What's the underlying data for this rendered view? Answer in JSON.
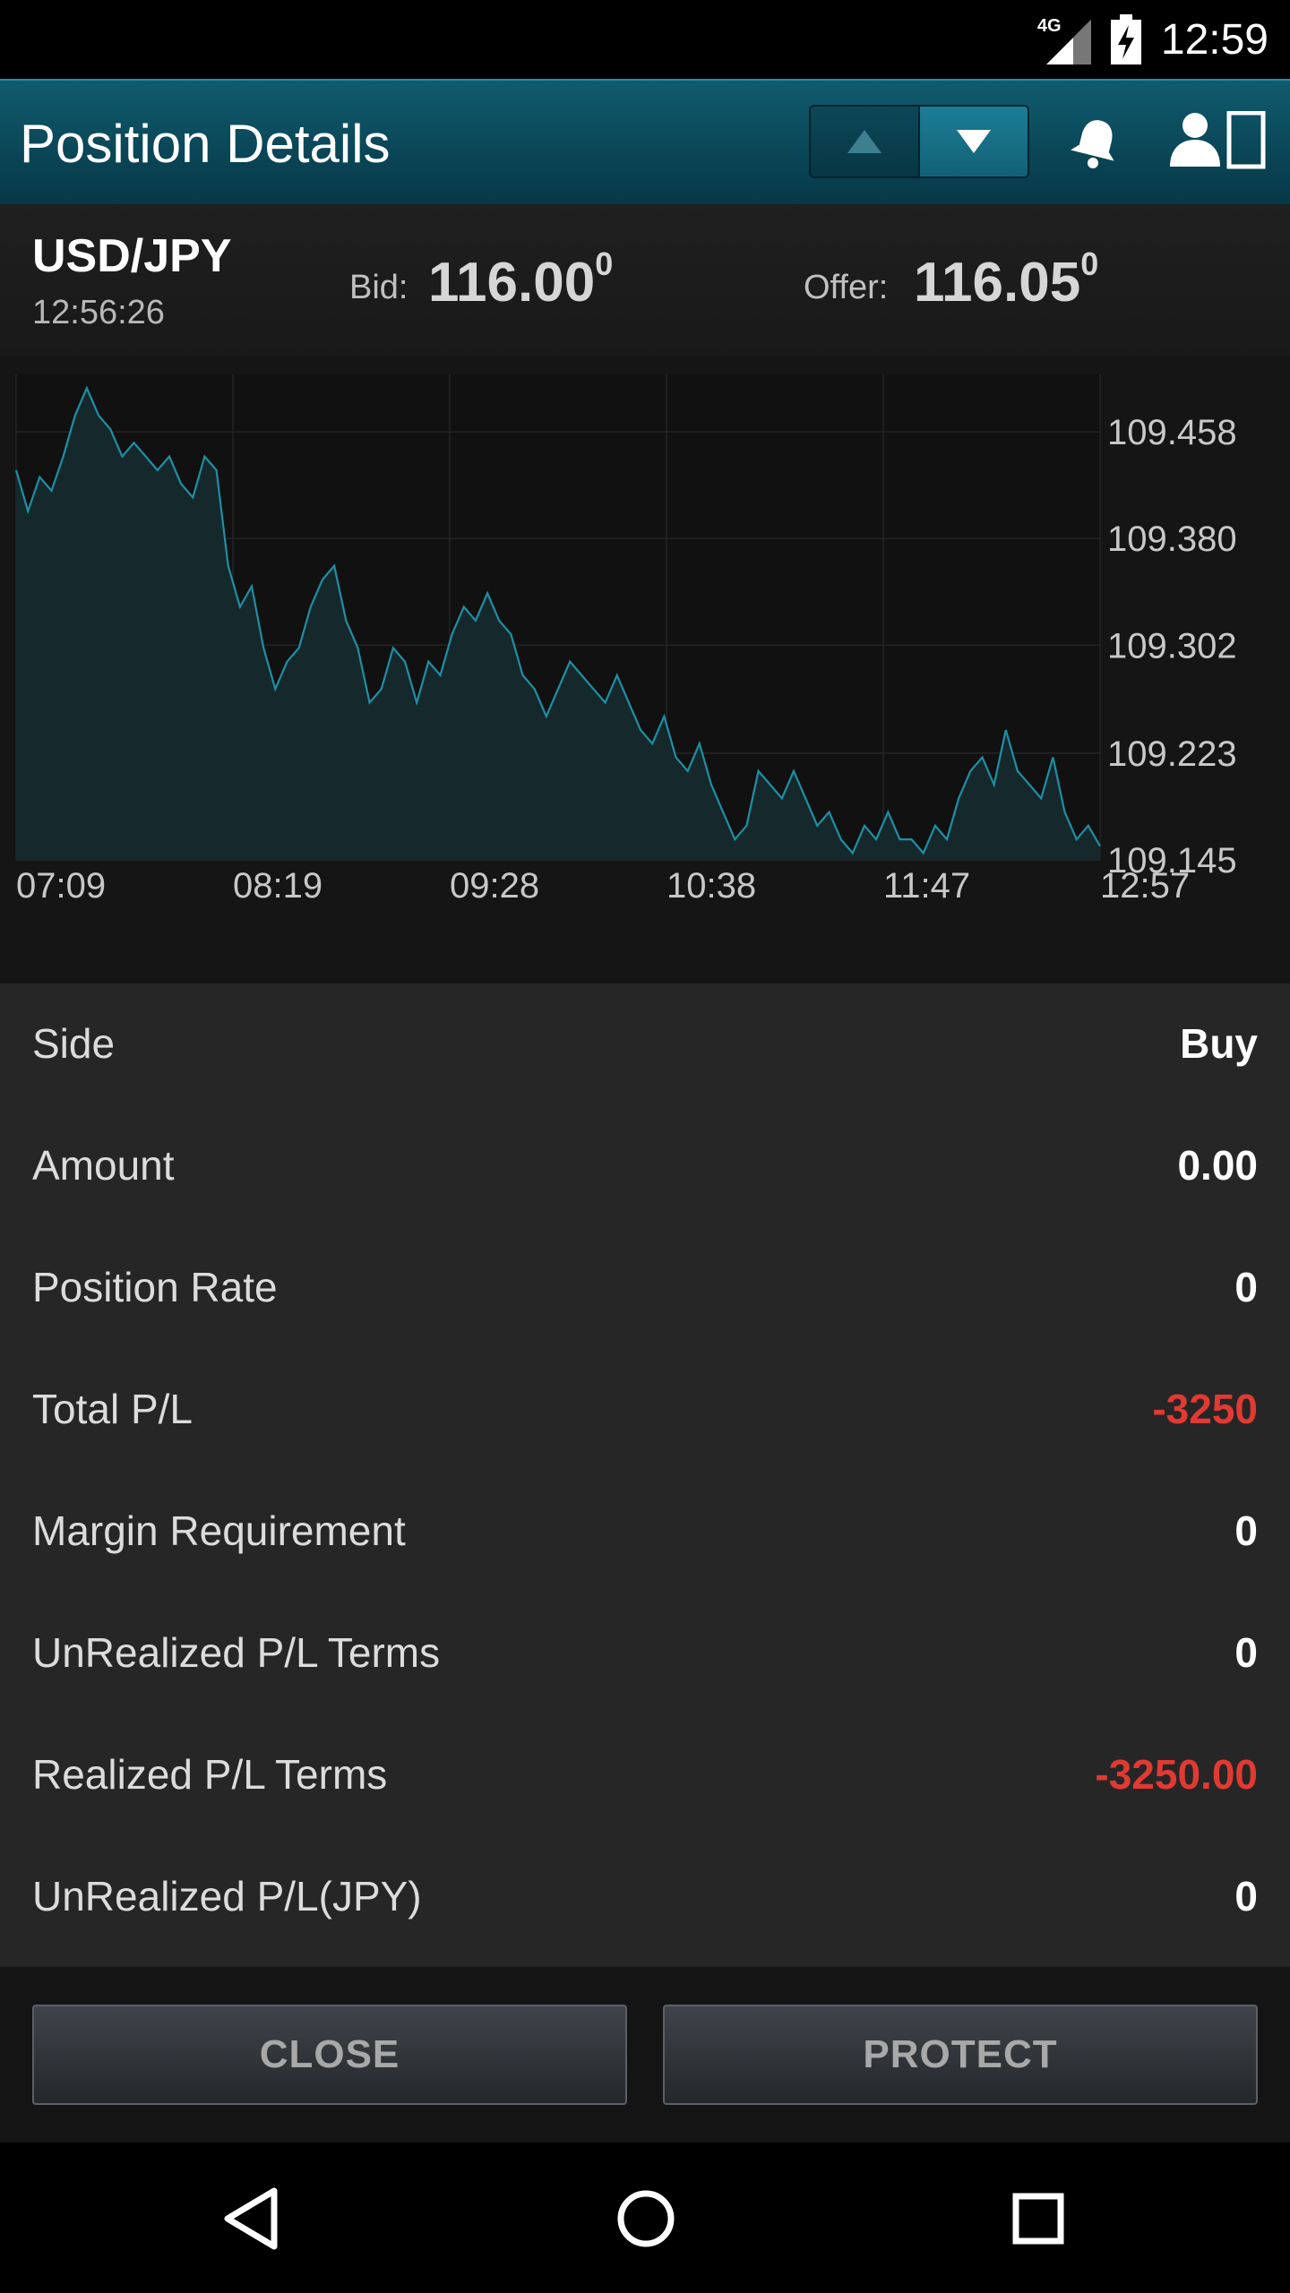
{
  "status_bar": {
    "network": "4G",
    "time": "12:59"
  },
  "app_bar": {
    "title": "Position Details"
  },
  "quote": {
    "pair": "USD/JPY",
    "time": "12:56:26",
    "bid_label": "Bid:",
    "bid_main": "116.00",
    "bid_pip": "0",
    "offer_label": "Offer:",
    "offer_main": "116.05",
    "offer_pip": "0"
  },
  "chart_data": {
    "type": "area",
    "x_tick_labels": [
      "07:09",
      "08:19",
      "09:28",
      "10:38",
      "11:47",
      "12:57"
    ],
    "y_tick_labels": [
      "109.458",
      "109.380",
      "109.302",
      "109.223",
      "109.145"
    ],
    "ylim": [
      109.145,
      109.5
    ],
    "grid": true,
    "colors": {
      "line": "#1f8fa3",
      "fill": "#15292d"
    },
    "series": [
      {
        "values": [
          109.43,
          109.4,
          109.425,
          109.415,
          109.44,
          109.47,
          109.49,
          109.47,
          109.46,
          109.44,
          109.45,
          109.44,
          109.43,
          109.44,
          109.42,
          109.41,
          109.44,
          109.43,
          109.36,
          109.33,
          109.345,
          109.3,
          109.27,
          109.29,
          109.3,
          109.33,
          109.35,
          109.36,
          109.32,
          109.3,
          109.26,
          109.27,
          109.3,
          109.29,
          109.26,
          109.29,
          109.28,
          109.31,
          109.33,
          109.32,
          109.34,
          109.32,
          109.31,
          109.28,
          109.27,
          109.25,
          109.27,
          109.29,
          109.28,
          109.27,
          109.26,
          109.28,
          109.26,
          109.24,
          109.23,
          109.25,
          109.22,
          109.21,
          109.23,
          109.2,
          109.18,
          109.16,
          109.17,
          109.21,
          109.2,
          109.19,
          109.21,
          109.19,
          109.17,
          109.18,
          109.16,
          109.15,
          109.17,
          109.16,
          109.18,
          109.16,
          109.16,
          109.15,
          109.17,
          109.16,
          109.19,
          109.21,
          109.22,
          109.2,
          109.24,
          109.21,
          109.2,
          109.19,
          109.22,
          109.18,
          109.16,
          109.17,
          109.155
        ]
      }
    ]
  },
  "details": {
    "rows": [
      {
        "label": "Side",
        "value": "Buy"
      },
      {
        "label": "Amount",
        "value": "0.00"
      },
      {
        "label": "Position Rate",
        "value": "0"
      },
      {
        "label": "Total P/L",
        "value": "-3250"
      },
      {
        "label": "Margin Requirement",
        "value": "0"
      },
      {
        "label": "UnRealized P/L Terms",
        "value": "0"
      },
      {
        "label": "Realized P/L Terms",
        "value": "-3250.00"
      },
      {
        "label": "UnRealized P/L(JPY)",
        "value": "0"
      }
    ]
  },
  "buttons": {
    "close_label": "CLOSE",
    "protect_label": "PROTECT"
  }
}
